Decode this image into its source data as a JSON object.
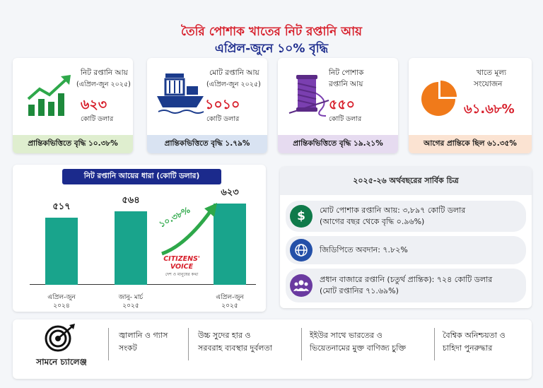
{
  "header": {
    "title": "তৈরি পোশাক খাতের নিট রপ্তানি আয়",
    "subtitle": "এপ্রিল-জুনে ১০% বৃদ্ধি"
  },
  "cards": [
    {
      "label1": "নিট রপ্তানি আয়",
      "label2": "(এপ্রিল-জুন ২০২৫)",
      "value": "৬২৩",
      "unit": "কোটি ডলার",
      "footer": "প্রান্তিকভিত্তিতে বৃদ্ধি ১০.৩৮%",
      "footer_bg": "#dfeecf",
      "icon": "growth-chart-icon"
    },
    {
      "label1": "মোট রপ্তানি আয়",
      "label2": "(এপ্রিল-জুন ২০২৫)",
      "value": "১০১০",
      "unit": "কোটি ডলার",
      "footer": "প্রান্তিকভিত্তিতে বৃদ্ধি ১.৭৯%",
      "footer_bg": "#d9e3f2",
      "icon": "cargo-ship-icon"
    },
    {
      "label1": "নিট পোশাক",
      "label2": "রপ্তানি আয়",
      "value": "৫৫০",
      "unit": "কোটি ডলার",
      "footer": "প্রান্তিকভিত্তিতে বৃদ্ধি ১৯.২১%",
      "footer_bg": "#e6dbf0",
      "icon": "thread-spool-icon"
    },
    {
      "label1": "খাতে মূল্য",
      "label2": "সংযোজন",
      "value": "৬১.৬৮%",
      "unit": "",
      "footer": "আগের প্রান্তিকে ছিল ৬১.৩৫%",
      "footer_bg": "#fbe3d2",
      "icon": "pie-chart-icon"
    }
  ],
  "trend": {
    "title": "নিট রপ্তানি আয়ের ধারা (কোটি ডলার)",
    "growth_label": "১০.৩৮%",
    "watermark_line1": "CITIZENS' VOICE",
    "watermark_line2": "দেশ ও মানুষের কথা"
  },
  "chart_data": {
    "type": "bar",
    "categories": [
      "এপ্রিল-জুন ২০২৪",
      "জানু- মার্চ ২০২৫",
      "এপ্রিল-জুন ২০২৫"
    ],
    "category_lines": [
      [
        "এপ্রিল-জুন",
        "২০২৪"
      ],
      [
        "জানু- মার্চ",
        "২০২৫"
      ],
      [
        "এপ্রিল-জুন",
        "২০২৫"
      ]
    ],
    "values": [
      517,
      564,
      623
    ],
    "value_labels": [
      "৫১৭",
      "৫৬৪",
      "৬২৩"
    ],
    "ylim": [
      0,
      623
    ],
    "bar_color": "#19a48c"
  },
  "summary": {
    "title": "২০২৫-২৬ অর্থবছরের সার্বিক চিত্র",
    "rows": [
      {
        "line1": "মোট পোশাক রপ্তানি আয়: ৩,৮৯৭ কোটি ডলার",
        "line2": "(আগের বছর থেকে বৃদ্ধি ০.৯৬%)",
        "icon": "dollar-icon",
        "color": "#0f7a4a"
      },
      {
        "line1": "জিডিপিতে অবদান: ৭.৮২%",
        "line2": "",
        "icon": "globe-icon",
        "color": "#2450a8"
      },
      {
        "line1": "প্রধান বাজারে রপ্তানি (চতুর্থ প্রান্তিক): ৭২৪ কোটি ডলার",
        "line2": "(মোট রপ্তানির ৭১.৬৯%)",
        "icon": "people-icon",
        "color": "#6a3aa0"
      }
    ]
  },
  "challenges": {
    "title": "সামনে চ্যালেঞ্জ",
    "items": [
      {
        "line1": "জ্বালানি ও গ্যাস",
        "line2": "সংকট"
      },
      {
        "line1": "উচ্চ সুদের হার ও",
        "line2": "সরবরাহ ব্যবস্থার দুর্বলতা"
      },
      {
        "line1": "ইইউর সাথে ভারতের ও",
        "line2": "ভিয়েতনামের মুক্ত বাণিজ্য চুক্তি"
      },
      {
        "line1": "বৈশ্বিক অনিশ্চয়তা ও",
        "line2": "চাহিদা পুনরুদ্ধার"
      }
    ]
  }
}
